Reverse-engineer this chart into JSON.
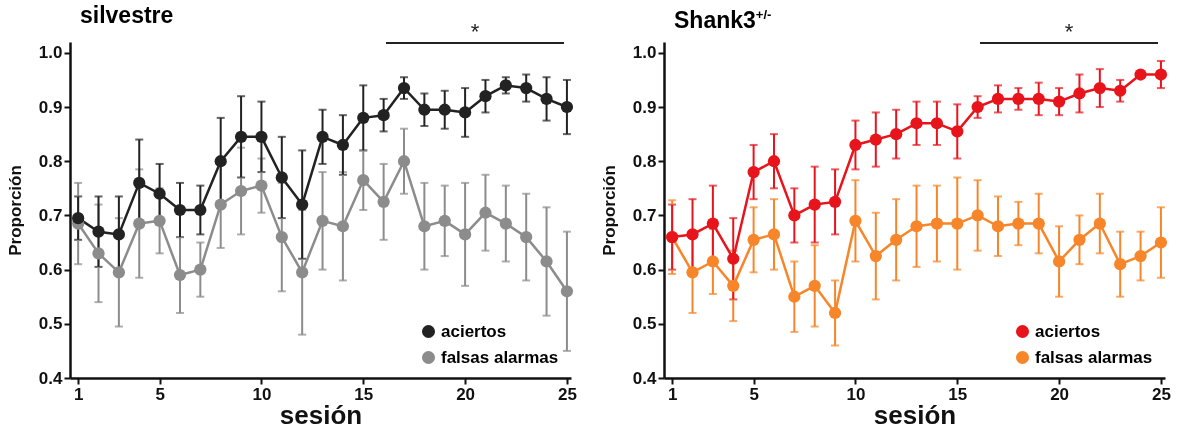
{
  "chart_data": [
    {
      "type": "line",
      "title": "silvestre",
      "xlabel": "sesión",
      "ylabel": "Proporción",
      "x": [
        1,
        2,
        3,
        4,
        5,
        6,
        7,
        8,
        9,
        10,
        11,
        12,
        13,
        14,
        15,
        16,
        17,
        18,
        19,
        20,
        21,
        22,
        23,
        24,
        25
      ],
      "xlim": [
        0.6,
        25.2
      ],
      "xticks": [
        1,
        5,
        10,
        15,
        20,
        25
      ],
      "ylim": [
        0.4,
        1.02
      ],
      "yticks": [
        0.4,
        0.5,
        0.6,
        0.7,
        0.8,
        0.9,
        {
          "value": 1.0,
          "label": "1.0"
        }
      ],
      "grid": false,
      "legend": "bottom right",
      "marker": "circle",
      "line_style": "solid",
      "annotations": [
        "*"
      ],
      "series": [
        {
          "name": "aciertos",
          "color": "#222222",
          "values": [
            0.695,
            0.67,
            0.665,
            0.76,
            0.74,
            0.71,
            0.71,
            0.8,
            0.845,
            0.845,
            0.77,
            0.72,
            0.845,
            0.83,
            0.88,
            0.885,
            0.935,
            0.895,
            0.895,
            0.89,
            0.92,
            0.94,
            0.935,
            0.915,
            0.9
          ],
          "errors": [
            0.04,
            0.065,
            0.07,
            0.08,
            0.055,
            0.05,
            0.045,
            0.08,
            0.075,
            0.065,
            0.075,
            0.1,
            0.05,
            0.055,
            0.06,
            0.03,
            0.02,
            0.03,
            0.035,
            0.045,
            0.03,
            0.015,
            0.025,
            0.04,
            0.05
          ]
        },
        {
          "name": "falsas alarmas",
          "color": "#8c8c8c",
          "values": [
            0.685,
            0.63,
            0.595,
            0.685,
            0.69,
            0.59,
            0.6,
            0.72,
            0.745,
            0.755,
            0.66,
            0.595,
            0.69,
            0.68,
            0.765,
            0.725,
            0.8,
            0.68,
            0.69,
            0.665,
            0.705,
            0.685,
            0.66,
            0.615,
            0.56
          ],
          "errors": [
            0.075,
            0.09,
            0.1,
            0.1,
            0.06,
            0.07,
            0.05,
            0.08,
            0.08,
            0.05,
            0.1,
            0.115,
            0.09,
            0.1,
            0.055,
            0.07,
            0.06,
            0.08,
            0.065,
            0.095,
            0.07,
            0.07,
            0.08,
            0.1,
            0.11
          ]
        }
      ]
    },
    {
      "type": "line",
      "title": "Shank3$^{+/-}$",
      "xlabel": "sesión",
      "ylabel": "Proporción",
      "x": [
        1,
        2,
        3,
        4,
        5,
        6,
        7,
        8,
        9,
        10,
        11,
        12,
        13,
        14,
        15,
        16,
        17,
        18,
        19,
        20,
        21,
        22,
        23,
        24,
        25
      ],
      "xlim": [
        0.6,
        25.2
      ],
      "xticks": [
        1,
        5,
        10,
        15,
        20,
        25
      ],
      "ylim": [
        0.4,
        1.02
      ],
      "yticks": [
        0.4,
        0.5,
        0.6,
        0.7,
        0.8,
        0.9,
        {
          "value": 1.0,
          "label": "1.0"
        }
      ],
      "grid": false,
      "legend": "bottom right",
      "marker": "circle",
      "line_style": "solid",
      "annotations": [
        "*"
      ],
      "series": [
        {
          "name": "aciertos",
          "color": "#e8141c",
          "values": [
            0.66,
            0.665,
            0.685,
            0.62,
            0.78,
            0.8,
            0.7,
            0.72,
            0.725,
            0.83,
            0.84,
            0.85,
            0.87,
            0.87,
            0.855,
            0.9,
            0.915,
            0.915,
            0.915,
            0.91,
            0.925,
            0.935,
            0.93,
            0.96,
            0.96
          ],
          "errors": [
            0.06,
            0.065,
            0.07,
            0.075,
            0.05,
            0.05,
            0.05,
            0.07,
            0.06,
            0.045,
            0.05,
            0.045,
            0.04,
            0.04,
            0.05,
            0.02,
            0.025,
            0.02,
            0.03,
            0.025,
            0.035,
            0.035,
            0.02,
            0.005,
            0.025
          ]
        },
        {
          "name": "falsas alarmas",
          "color": "#f7862a",
          "values": [
            0.66,
            0.595,
            0.615,
            0.57,
            0.655,
            0.665,
            0.55,
            0.57,
            0.52,
            0.69,
            0.625,
            0.655,
            0.68,
            0.685,
            0.685,
            0.7,
            0.68,
            0.685,
            0.685,
            0.615,
            0.655,
            0.685,
            0.61,
            0.625,
            0.65
          ],
          "errors": [
            0.068,
            0.075,
            0.06,
            0.065,
            0.06,
            0.065,
            0.065,
            0.075,
            0.06,
            0.075,
            0.08,
            0.075,
            0.075,
            0.07,
            0.085,
            0.065,
            0.055,
            0.04,
            0.055,
            0.065,
            0.045,
            0.055,
            0.06,
            0.045,
            0.065
          ]
        }
      ]
    }
  ]
}
